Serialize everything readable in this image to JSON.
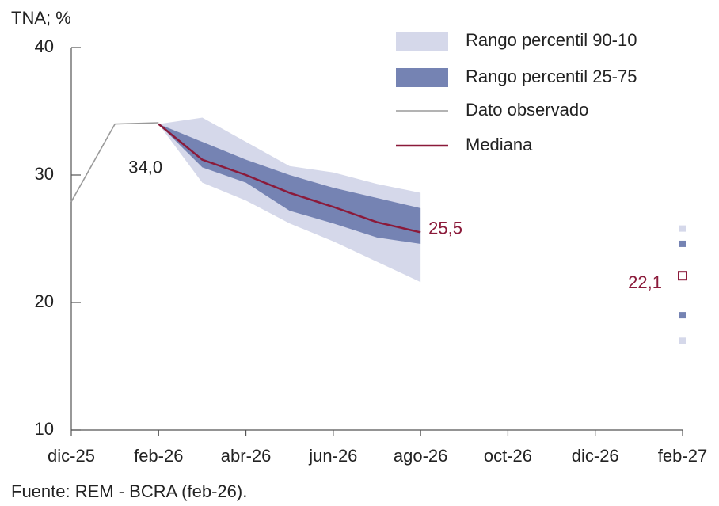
{
  "chart_data": {
    "type": "line",
    "y_label": "TNA; %",
    "source": "Fuente: REM - BCRA (feb-26).",
    "categories": [
      "dic-25",
      null,
      "feb-26",
      null,
      "abr-26",
      null,
      "jun-26",
      null,
      "ago-26",
      null,
      "oct-26",
      null,
      "dic-26",
      null,
      "feb-27"
    ],
    "ylim": [
      10,
      40
    ],
    "yticks": [
      10,
      20,
      30,
      40
    ],
    "bands": [
      {
        "name": "Rango percentil 90-10",
        "color": "#d5d8ea",
        "high": [
          null,
          null,
          34.0,
          34.5,
          32.6,
          30.7,
          30.2,
          29.3,
          28.6,
          null,
          null,
          null,
          null,
          null,
          25.8
        ],
        "low": [
          null,
          null,
          34.0,
          29.4,
          28.0,
          26.2,
          24.8,
          23.2,
          21.6,
          null,
          null,
          null,
          null,
          null,
          17.0
        ]
      },
      {
        "name": "Rango percentil 25-75",
        "color": "#7583b3",
        "high": [
          null,
          null,
          34.0,
          32.6,
          31.2,
          30.0,
          29.0,
          28.2,
          27.4,
          null,
          null,
          null,
          null,
          null,
          24.6
        ],
        "low": [
          null,
          null,
          34.0,
          30.6,
          29.4,
          27.2,
          26.2,
          25.1,
          24.6,
          null,
          null,
          null,
          null,
          null,
          19.0
        ]
      }
    ],
    "series": [
      {
        "name": "Dato observado",
        "color": "#9a9a9a",
        "values": [
          27.9,
          34.0,
          34.1,
          null,
          null,
          null,
          null,
          null,
          null,
          null,
          null,
          null,
          null,
          null,
          null
        ]
      },
      {
        "name": "Mediana",
        "color": "#8b1a3a",
        "values": [
          null,
          null,
          34.0,
          31.2,
          30.0,
          28.6,
          27.5,
          26.3,
          25.5,
          null,
          null,
          null,
          null,
          null,
          22.1
        ],
        "value_labels": [
          null,
          null,
          "34,0",
          null,
          null,
          null,
          null,
          null,
          "25,5",
          null,
          null,
          null,
          null,
          null,
          "22,1"
        ]
      }
    ]
  }
}
